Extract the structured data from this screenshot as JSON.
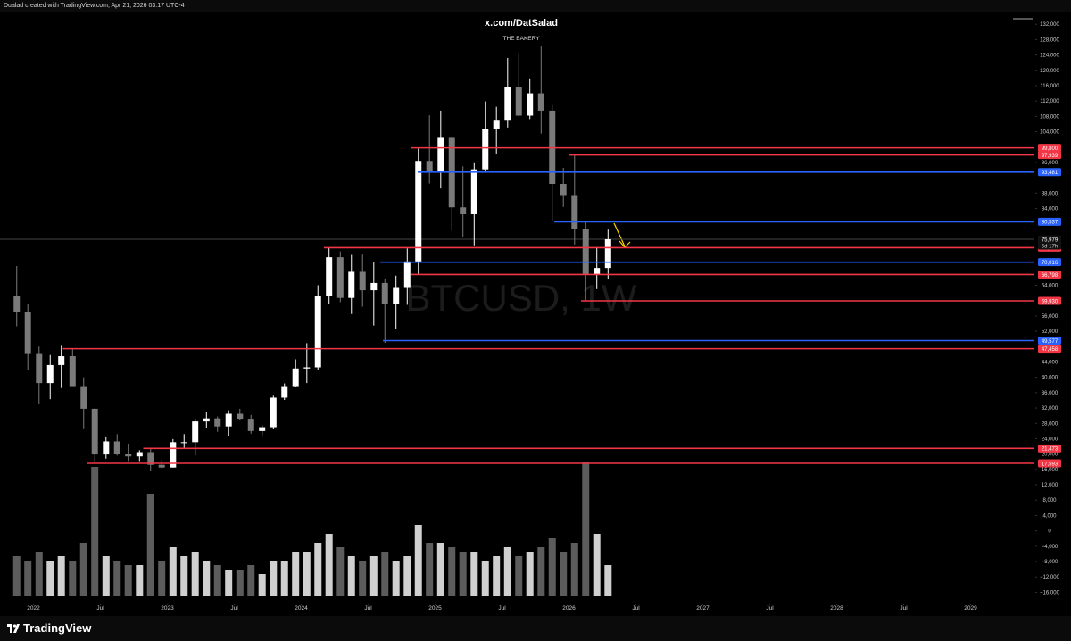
{
  "header": "Dualad created with TradingView.com, Apr 21, 2026 03:17 UTC-4",
  "footer": "TradingView",
  "chart_data": {
    "type": "candlestick",
    "title": "x.com/DatSalad",
    "subtitle": "THE BAKERY",
    "watermark": "BTCUSD, 1W",
    "up_color": "#ffffff",
    "down_color": "#7a7a7a",
    "x": [
      2021.875,
      2021.958,
      2022.042,
      2022.125,
      2022.208,
      2022.292,
      2022.375,
      2022.458,
      2022.542,
      2022.625,
      2022.708,
      2022.792,
      2022.875,
      2022.958,
      2023.042,
      2023.125,
      2023.208,
      2023.292,
      2023.375,
      2023.458,
      2023.542,
      2023.625,
      2023.708,
      2023.792,
      2023.875,
      2023.958,
      2024.042,
      2024.125,
      2024.208,
      2024.292,
      2024.375,
      2024.458,
      2024.542,
      2024.625,
      2024.708,
      2024.792,
      2024.875,
      2024.958,
      2025.042,
      2025.125,
      2025.208,
      2025.292,
      2025.375,
      2025.458,
      2025.542,
      2025.625,
      2025.708,
      2025.792,
      2025.875,
      2025.958,
      2026.042,
      2026.125,
      2026.208,
      2026.292
    ],
    "open": [
      61300,
      57000,
      46300,
      38500,
      43200,
      45500,
      37700,
      31800,
      19900,
      23300,
      20000,
      19400,
      20500,
      17200,
      16500,
      23100,
      23100,
      28500,
      29300,
      27200,
      30500,
      29200,
      26000,
      27000,
      34700,
      37700,
      42300,
      42600,
      61200,
      71300,
      60700,
      67500,
      62700,
      64600,
      59000,
      63300,
      70200,
      96400,
      93400,
      102400,
      84300,
      82500,
      94200,
      104600,
      107100,
      115700,
      108200,
      114000,
      109500,
      90400,
      87500,
      78600,
      66800,
      68500
    ],
    "high": [
      69000,
      59000,
      48000,
      45800,
      48200,
      47400,
      40000,
      31900,
      24600,
      25200,
      22700,
      21000,
      21500,
      18400,
      23900,
      25200,
      29200,
      31000,
      29800,
      31400,
      31800,
      30200,
      27500,
      35200,
      38400,
      44700,
      48900,
      64000,
      73800,
      72800,
      71900,
      72000,
      70000,
      65600,
      66500,
      73600,
      99600,
      108300,
      109500,
      102800,
      95000,
      95800,
      111900,
      110500,
      123200,
      124500,
      117900,
      126200,
      111000,
      94600,
      97900,
      80500,
      74000,
      78500
    ],
    "low": [
      53300,
      42000,
      33000,
      34300,
      37200,
      37700,
      26700,
      17600,
      18800,
      19600,
      18200,
      18200,
      15500,
      16300,
      16500,
      21400,
      19600,
      26900,
      25800,
      24800,
      28900,
      25300,
      24900,
      26600,
      34100,
      37600,
      38500,
      41900,
      59000,
      59600,
      56500,
      58400,
      53500,
      49000,
      52500,
      58900,
      66800,
      90500,
      89200,
      78200,
      76600,
      74400,
      93300,
      98200,
      105100,
      108000,
      107300,
      103500,
      80600,
      84400,
      74600,
      60000,
      63000,
      65500
    ],
    "close": [
      57000,
      46300,
      38500,
      43200,
      45500,
      37700,
      31800,
      19900,
      23300,
      20000,
      19400,
      20500,
      17200,
      16500,
      23100,
      23100,
      28500,
      29300,
      27200,
      30500,
      29200,
      26000,
      27000,
      34700,
      37700,
      42300,
      42600,
      61200,
      71300,
      60700,
      67500,
      62700,
      64600,
      59000,
      63300,
      70200,
      96400,
      93400,
      102400,
      84300,
      82500,
      94200,
      104600,
      107100,
      115700,
      108200,
      114000,
      109500,
      90400,
      87500,
      78600,
      66800,
      68500,
      75979
    ],
    "volume": [
      45,
      40,
      50,
      40,
      45,
      40,
      60,
      145,
      45,
      40,
      35,
      35,
      115,
      40,
      55,
      45,
      50,
      40,
      35,
      30,
      30,
      35,
      25,
      40,
      40,
      50,
      50,
      60,
      70,
      55,
      45,
      40,
      45,
      50,
      40,
      45,
      80,
      60,
      60,
      55,
      50,
      50,
      40,
      45,
      55,
      45,
      50,
      55,
      65,
      50,
      60,
      150,
      70,
      35
    ],
    "current_price": {
      "value": 75979,
      "label": "75,979",
      "countdown": "5d 17h"
    },
    "levels": [
      {
        "value": 99800,
        "label": "99,800",
        "color": "#f23645",
        "start": 2024.82
      },
      {
        "value": 97939,
        "label": "97,939",
        "color": "#f23645",
        "start": 2026.0
      },
      {
        "value": 93481,
        "label": "93,481",
        "color": "#2962ff",
        "start": 2024.87
      },
      {
        "value": 80537,
        "label": "80,537",
        "color": "#2962ff",
        "start": 2025.89
      },
      {
        "value": 73794,
        "label": "73,794",
        "color": "#f23645",
        "start": 2024.17
      },
      {
        "value": 70016,
        "label": "70,016",
        "color": "#2962ff",
        "start": 2024.59
      },
      {
        "value": 66798,
        "label": "66,798",
        "color": "#f23645",
        "start": 2024.82
      },
      {
        "value": 59930,
        "label": "59,930",
        "color": "#f23645",
        "start": 2026.09
      },
      {
        "value": 49577,
        "label": "49,577",
        "color": "#2962ff",
        "start": 2024.61
      },
      {
        "value": 47458,
        "label": "47,458",
        "color": "#f23645",
        "start": 2022.22
      },
      {
        "value": 21473,
        "label": "21,473",
        "color": "#f23645",
        "start": 2022.82
      },
      {
        "value": 17593,
        "label": "17,593",
        "color": "#f23645",
        "start": 2022.4
      }
    ],
    "xlim": [
      2021.75,
      2029.47
    ],
    "xticks": [
      2022,
      {
        "value": 2022.5,
        "label": "Jul"
      },
      2023,
      {
        "value": 2023.5,
        "label": "Jul"
      },
      2024,
      {
        "value": 2024.5,
        "label": "Jul"
      },
      2025,
      {
        "value": 2025.5,
        "label": "Jul"
      },
      2026,
      {
        "value": 2026.5,
        "label": "Jul"
      },
      2027,
      {
        "value": 2027.5,
        "label": "Jul"
      },
      2028,
      {
        "value": 2028.5,
        "label": "Jul"
      },
      2029
    ],
    "ylim": [
      -18000,
      136000
    ],
    "yticks": [
      {
        "value": -16000,
        "label": "−16,000"
      },
      {
        "value": -12000,
        "label": "−12,000"
      },
      {
        "value": -8000,
        "label": "−8,000"
      },
      {
        "value": -4000,
        "label": "−4,000"
      },
      0,
      {
        "value": 4000,
        "label": "4,000"
      },
      {
        "value": 8000,
        "label": "8,000"
      },
      {
        "value": 12000,
        "label": "12,000"
      },
      {
        "value": 16000,
        "label": "16,000"
      },
      {
        "value": 20000,
        "label": "20,000"
      },
      {
        "value": 24000,
        "label": "24,000"
      },
      {
        "value": 28000,
        "label": "28,000"
      },
      {
        "value": 32000,
        "label": "32,000"
      },
      {
        "value": 36000,
        "label": "36,000"
      },
      {
        "value": 40000,
        "label": "40,000"
      },
      {
        "value": 44000,
        "label": "44,000"
      },
      {
        "value": 52000,
        "label": "52,000"
      },
      {
        "value": 56000,
        "label": "56,000"
      },
      {
        "value": 64000,
        "label": "64,000"
      },
      {
        "value": 84000,
        "label": "84,000"
      },
      {
        "value": 88000,
        "label": "88,000"
      },
      {
        "value": 96000,
        "label": "96,000"
      },
      {
        "value": 104000,
        "label": "104,000"
      },
      {
        "value": 108000,
        "label": "108,000"
      },
      {
        "value": 112000,
        "label": "112,000"
      },
      {
        "value": 116000,
        "label": "116,000"
      },
      {
        "value": 120000,
        "label": "120,000"
      },
      {
        "value": 124000,
        "label": "124,000"
      },
      {
        "value": 128000,
        "label": "128,000"
      },
      {
        "value": 132000,
        "label": "132,000"
      }
    ]
  }
}
